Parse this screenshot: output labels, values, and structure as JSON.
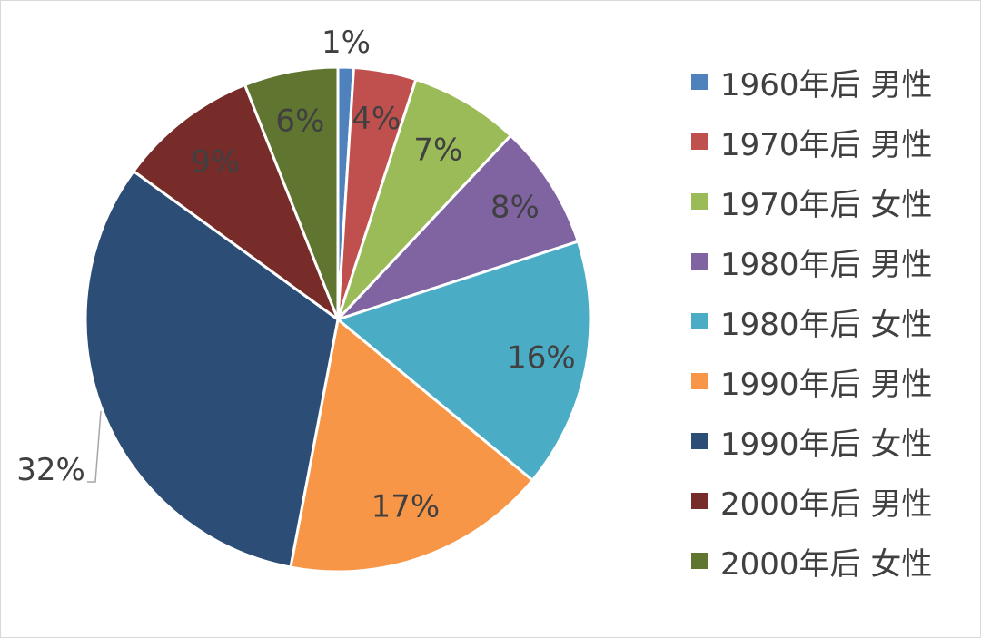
{
  "chart_data": {
    "type": "pie",
    "title": "",
    "legend_position": "right",
    "show_data_labels": true,
    "slices": [
      {
        "name": "1960年后 男性",
        "value": 1,
        "label": "1%",
        "color": "#4f81bd"
      },
      {
        "name": "1970年后 男性",
        "value": 4,
        "label": "4%",
        "color": "#c0504d"
      },
      {
        "name": "1970年后 女性",
        "value": 7,
        "label": "7%",
        "color": "#9bbb59"
      },
      {
        "name": "1980年后 男性",
        "value": 8,
        "label": "8%",
        "color": "#8064a2"
      },
      {
        "name": "1980年后 女性",
        "value": 16,
        "label": "16%",
        "color": "#4bacc6"
      },
      {
        "name": "1990年后 男性",
        "value": 17,
        "label": "17%",
        "color": "#f79646"
      },
      {
        "name": "1990年后 女性",
        "value": 32,
        "label": "32%",
        "color": "#2c4d75"
      },
      {
        "name": "2000年后 男性",
        "value": 9,
        "label": "9%",
        "color": "#772c2a"
      },
      {
        "name": "2000年后 女性",
        "value": 6,
        "label": "6%",
        "color": "#5f7530"
      }
    ]
  }
}
